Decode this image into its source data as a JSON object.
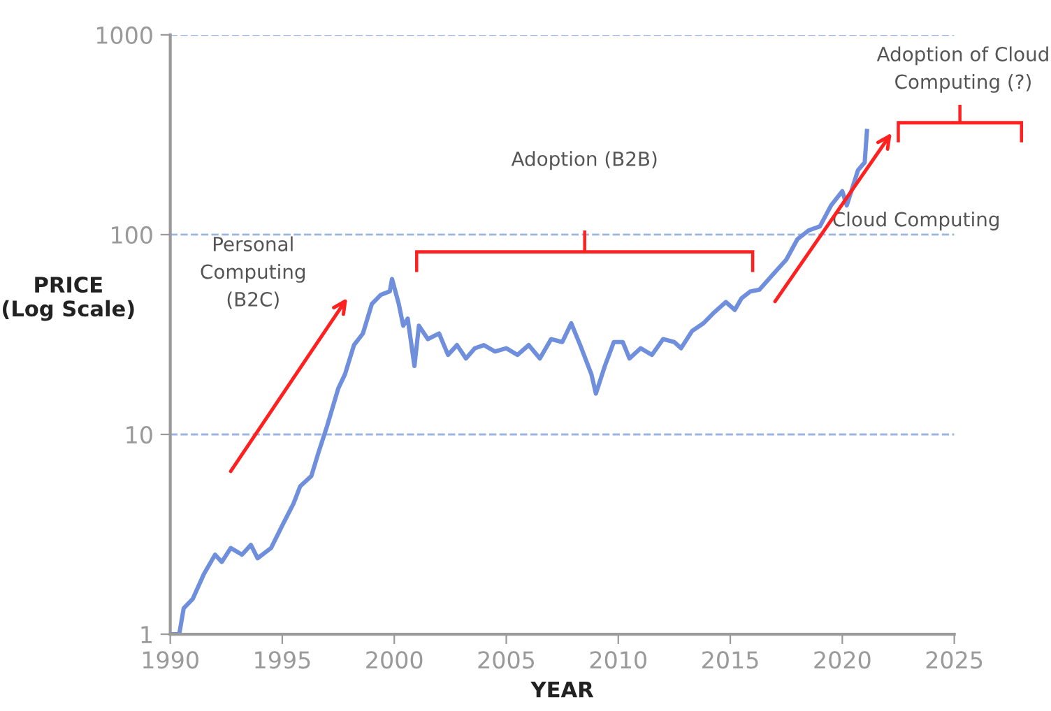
{
  "chart_data": {
    "type": "line",
    "xlabel": "YEAR",
    "ylabel": "PRICE\n(Log Scale)",
    "x": [
      1990.0,
      1990.4,
      1990.6,
      1991.0,
      1991.5,
      1992.0,
      1992.3,
      1992.7,
      1993.2,
      1993.6,
      1993.9,
      1994.5,
      1995.0,
      1995.5,
      1995.8,
      1996.3,
      1996.6,
      1997.0,
      1997.5,
      1997.8,
      1998.2,
      1998.6,
      1999.0,
      1999.4,
      1999.8,
      1999.9,
      2000.2,
      2000.4,
      2000.6,
      2000.9,
      2001.1,
      2001.5,
      2002.0,
      2002.4,
      2002.8,
      2003.2,
      2003.6,
      2004.0,
      2004.5,
      2005.0,
      2005.5,
      2006.0,
      2006.5,
      2007.0,
      2007.5,
      2007.9,
      2008.3,
      2008.8,
      2009.0,
      2009.4,
      2009.8,
      2010.2,
      2010.5,
      2011.0,
      2011.5,
      2012.0,
      2012.5,
      2012.8,
      2013.3,
      2013.8,
      2014.3,
      2014.8,
      2015.2,
      2015.5,
      2015.9,
      2016.3,
      2017.0,
      2017.5,
      2018.0,
      2018.5,
      2019.0,
      2019.5,
      2020.0,
      2020.2,
      2020.7,
      2021.0,
      2021.1
    ],
    "series": [
      {
        "color": "#6f8fdd",
        "values": [
          1,
          1.0,
          1.35,
          1.5,
          2.0,
          2.5,
          2.3,
          2.7,
          2.5,
          2.8,
          2.4,
          2.7,
          3.5,
          4.5,
          5.5,
          6.2,
          8,
          11,
          17,
          20,
          28,
          32,
          45,
          50,
          52,
          60,
          45,
          35,
          38,
          22,
          35,
          30,
          32,
          25,
          28,
          24,
          27,
          28,
          26,
          27,
          25,
          28,
          24,
          30,
          29,
          36,
          28,
          20,
          16,
          22,
          29,
          29,
          24,
          27,
          25,
          30,
          29,
          27,
          33,
          36,
          41,
          46,
          42,
          48,
          52,
          53,
          65,
          75,
          95,
          105,
          110,
          140,
          165,
          140,
          210,
          230,
          330
        ]
      }
    ],
    "log": "y",
    "xlim": [
      1990,
      2025
    ],
    "xticks": [
      1990,
      1995,
      2000,
      2005,
      2010,
      2015,
      2020,
      2025
    ],
    "ylim": [
      1,
      1000
    ],
    "yticks": [
      1,
      10,
      100,
      1000
    ],
    "grid": "y",
    "legend": false,
    "marker": "none",
    "line_style": "solid",
    "annotations": [
      "Personal\nComputing\n(B2C)",
      "Adoption (B2B)",
      "Cloud Computing",
      "Adoption of Cloud\nComputing (?)"
    ]
  }
}
